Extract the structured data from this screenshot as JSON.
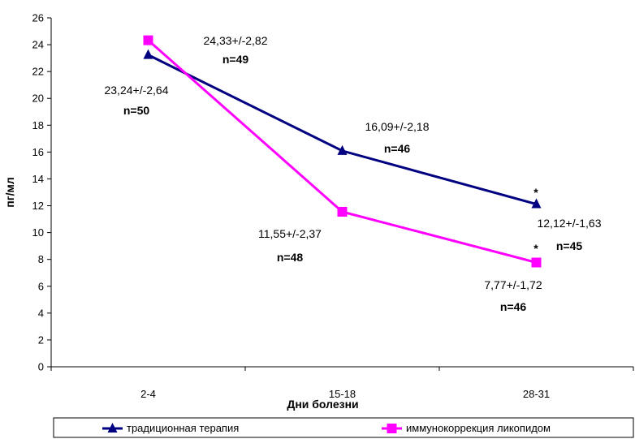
{
  "chart_data": {
    "type": "line",
    "categories": [
      "2-4",
      "15-18",
      "28-31"
    ],
    "series": [
      {
        "name": "традиционная терапия",
        "values": [
          23.24,
          16.09,
          12.12
        ],
        "color": "#000080",
        "marker": "triangle",
        "labels": [
          {
            "value": "23,24+/-2,64",
            "n": "n=50"
          },
          {
            "value": "16,09+/-2,18",
            "n": "n=46"
          },
          {
            "value": "12,12+/-1,63",
            "n": "n=45"
          }
        ]
      },
      {
        "name": "иммунокоррекция ликопидом",
        "values": [
          24.33,
          11.55,
          7.77
        ],
        "color": "#ff00ff",
        "marker": "square",
        "labels": [
          {
            "value": "24,33+/-2,82",
            "n": "n=49"
          },
          {
            "value": "11,55+/-2,37",
            "n": "n=48"
          },
          {
            "value": "7,77+/-1,72",
            "n": "n=46"
          }
        ]
      }
    ],
    "annotations": [
      "*",
      "*"
    ],
    "xlabel": "Дни болезни",
    "ylabel": "пг/мл",
    "ylim": [
      0,
      26
    ],
    "yticks": [
      "0",
      "2",
      "4",
      "6",
      "8",
      "10",
      "12",
      "14",
      "16",
      "18",
      "20",
      "22",
      "24",
      "26"
    ],
    "grid": false,
    "legend": "bottom"
  }
}
